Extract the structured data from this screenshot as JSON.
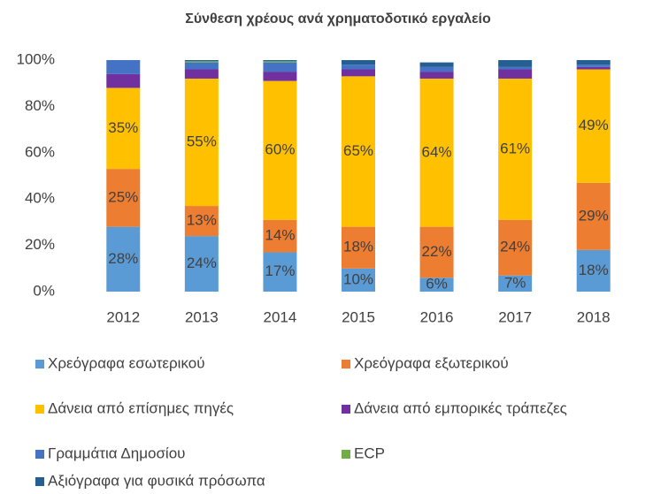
{
  "chart_data": {
    "type": "stacked_bar",
    "title": "Σύνθεση χρέους ανά χρηματοδοτικό εργαλείο",
    "categories": [
      "2012",
      "2013",
      "2014",
      "2015",
      "2016",
      "2017",
      "2018"
    ],
    "ylim": [
      0,
      100
    ],
    "yticks": [
      {
        "value": 0,
        "label": "0%"
      },
      {
        "value": 20,
        "label": "20%"
      },
      {
        "value": 40,
        "label": "40%"
      },
      {
        "value": 60,
        "label": "60%"
      },
      {
        "value": 80,
        "label": "80%"
      },
      {
        "value": 100,
        "label": "100%"
      }
    ],
    "grid": false,
    "legend": "bottom",
    "series": [
      {
        "name": "Χρεόγραφα εσωτερικού",
        "color": "#5b9bd5",
        "values": [
          28,
          24,
          17,
          10,
          6,
          7,
          18
        ],
        "value_labels": [
          "28%",
          "24%",
          "17%",
          "10%",
          "6%",
          "7%",
          "18%"
        ]
      },
      {
        "name": "Χρεόγραφα εξωτερικού",
        "color": "#ed7d31",
        "values": [
          25,
          13,
          14,
          18,
          22,
          24,
          29
        ],
        "value_labels": [
          "25%",
          "13%",
          "14%",
          "18%",
          "22%",
          "24%",
          "29%"
        ]
      },
      {
        "name": "Δάνεια από επίσημες πηγές",
        "color": "#ffc000",
        "values": [
          35,
          55,
          60,
          65,
          64,
          61,
          49
        ],
        "value_labels": [
          "35%",
          "55%",
          "60%",
          "65%",
          "64%",
          "61%",
          "49%"
        ]
      },
      {
        "name": "Δάνεια από εμπορικές τράπεζες",
        "color": "#7030a0",
        "values": [
          6,
          4,
          4,
          3,
          3,
          4,
          1
        ]
      },
      {
        "name": "Γραμμάτια Δημοσίου",
        "color": "#4472c4",
        "values": [
          6,
          3,
          4,
          2,
          2,
          1,
          1
        ]
      },
      {
        "name": "ECP",
        "color": "#70ad47",
        "values": [
          0,
          0.5,
          0.5,
          0,
          0,
          0,
          0
        ]
      },
      {
        "name": "Αξιόγραφα για φυσικά πρόσωπα",
        "color": "#255e91",
        "values": [
          0,
          0.5,
          0.5,
          2,
          2,
          3,
          2
        ]
      }
    ]
  }
}
